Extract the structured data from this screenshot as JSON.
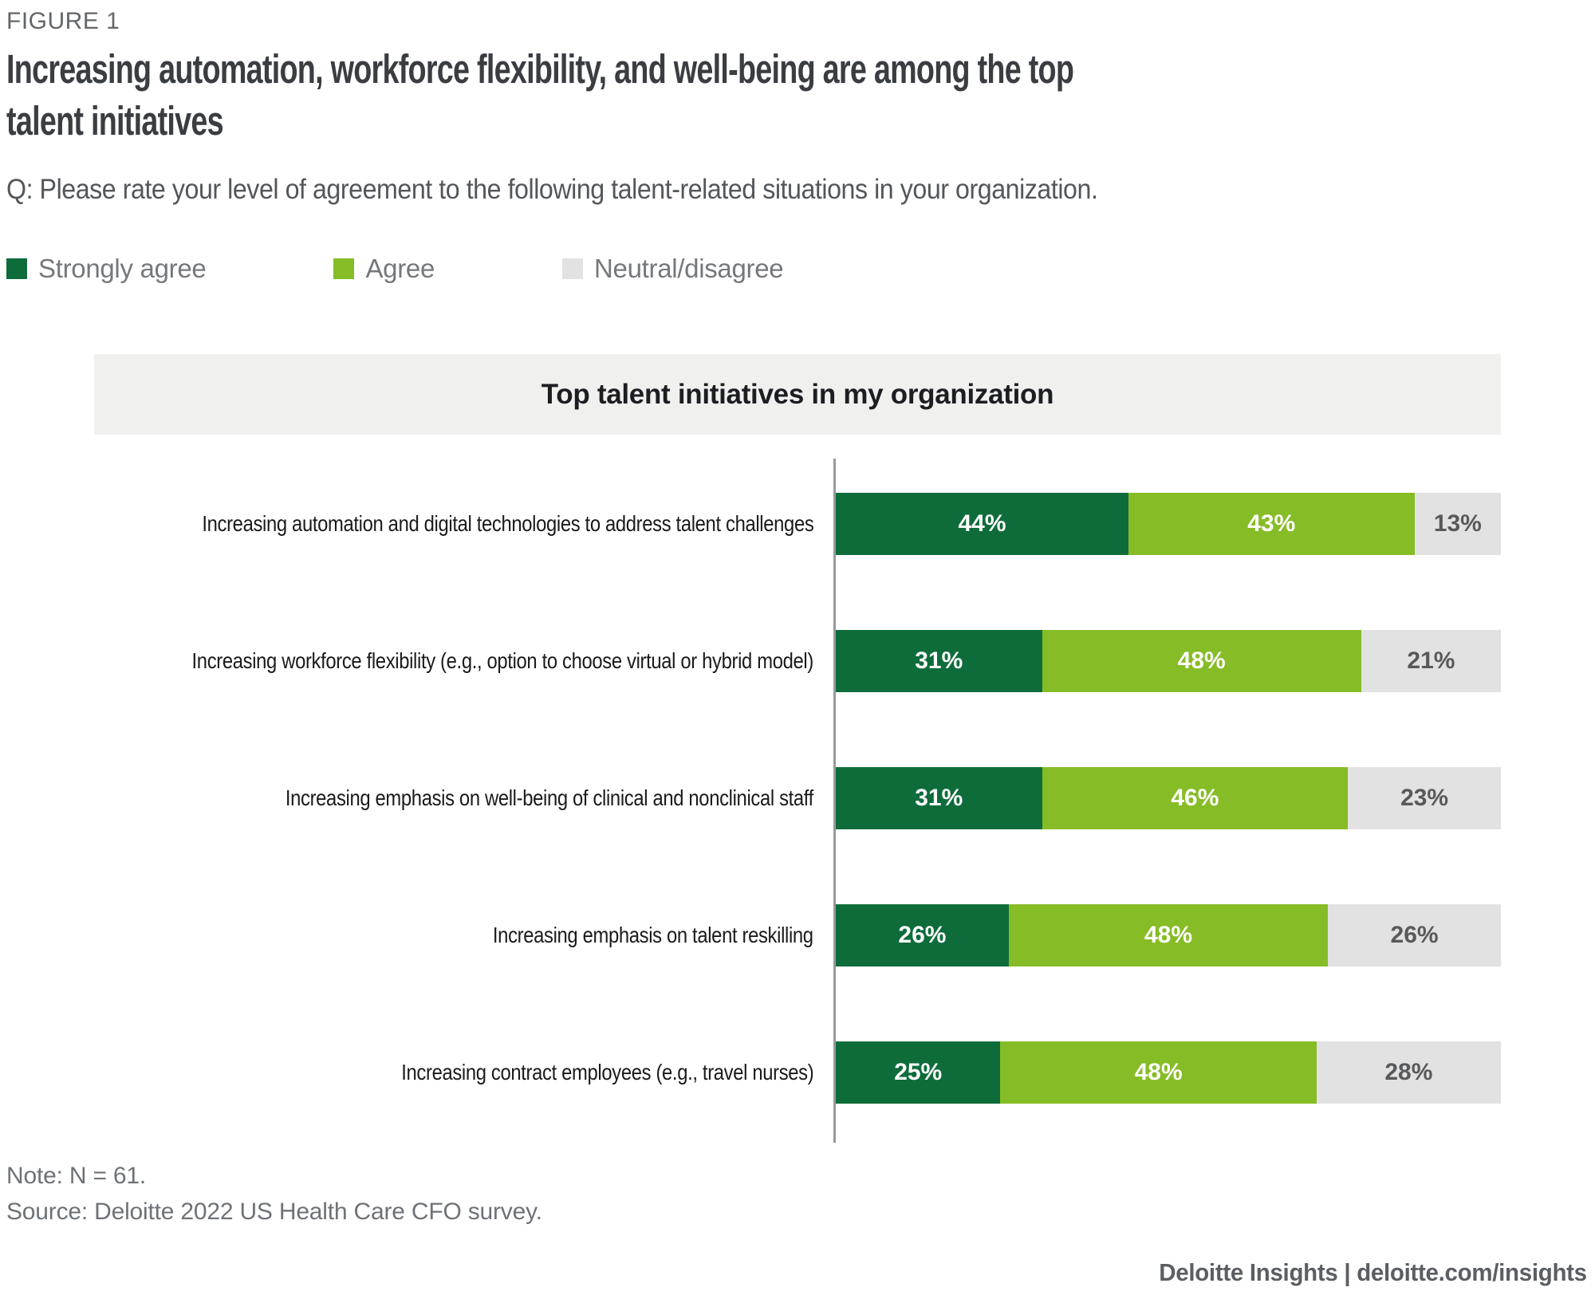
{
  "figure_label": "FIGURE 1",
  "title_lines": [
    "Increasing automation, workforce flexibility, and well-being are among the top",
    "talent initiatives"
  ],
  "question": "Q: Please rate your level of agreement to the following talent-related situations in your organization.",
  "legend": [
    {
      "label": "Strongly agree",
      "color": "#0E6C3B"
    },
    {
      "label": "Agree",
      "color": "#86BC25"
    },
    {
      "label": "Neutral/disagree",
      "color": "#E2E2E2"
    }
  ],
  "chart_data": {
    "type": "bar",
    "orientation": "horizontal",
    "stacked": true,
    "title": "Top talent initiatives in my organization",
    "value_suffix": "%",
    "xlim": [
      0,
      100
    ],
    "categories": [
      "Increasing automation and digital technologies to address talent challenges",
      "Increasing workforce flexibility (e.g., option to choose virtual or hybrid model)",
      "Increasing emphasis on well-being of clinical and nonclinical staff",
      "Increasing emphasis on talent reskilling",
      "Increasing contract employees (e.g., travel nurses)"
    ],
    "series": [
      {
        "name": "Strongly agree",
        "color": "#0E6C3B",
        "label_color": "#FFFFFF",
        "values": [
          44,
          31,
          31,
          26,
          25
        ]
      },
      {
        "name": "Agree",
        "color": "#86BC25",
        "label_color": "#FFFFFF",
        "values": [
          43,
          48,
          46,
          48,
          48
        ]
      },
      {
        "name": "Neutral/disagree",
        "color": "#E2E2E2",
        "label_color": "#58595B",
        "values": [
          13,
          21,
          23,
          26,
          28
        ]
      }
    ],
    "legend_position": "top",
    "grid": false
  },
  "note": "Note: N = 61.",
  "source": "Source: Deloitte 2022 US Health Care CFO survey.",
  "footer": "Deloitte Insights | deloitte.com/insights"
}
